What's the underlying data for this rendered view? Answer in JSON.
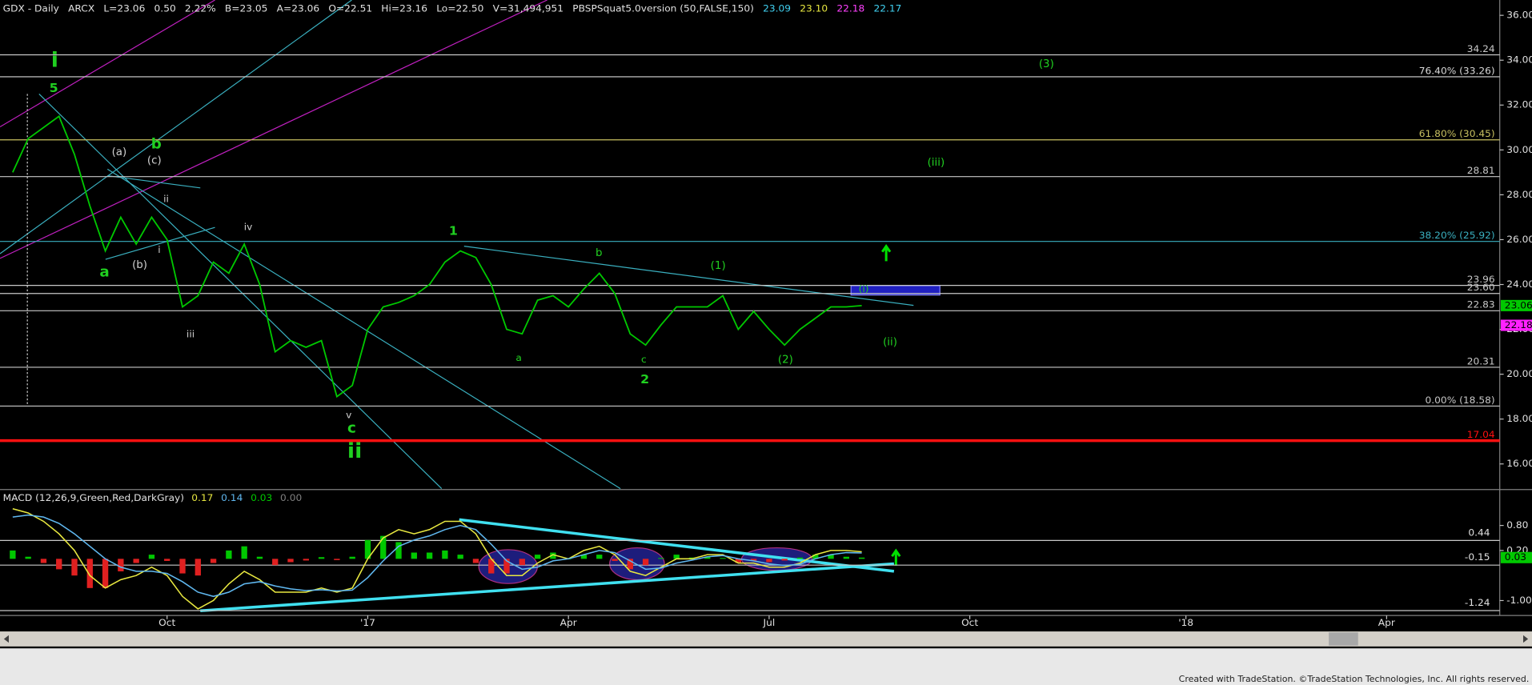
{
  "header": {
    "symbol": "GDX - Daily",
    "exchange": "ARCX",
    "fields": [
      "L=23.06",
      "0.50",
      "2.22%",
      "B=23.05",
      "A=23.06",
      "O=22.51",
      "Hi=23.16",
      "Lo=22.50",
      "V=31,494,951"
    ],
    "study": "PBSPSquat5.0version (50,FALSE,150)",
    "study_values": [
      "23.09",
      "23.10",
      "22.18",
      "22.17"
    ]
  },
  "footer": "Created with TradeStation. ©TradeStation Technologies, Inc. All rights reserved.",
  "chart_data": [
    {
      "type": "line",
      "color": "#00c800",
      "categories": [
        null,
        null,
        null,
        null,
        null,
        null,
        null,
        null,
        null,
        null,
        "Oct",
        null,
        null,
        null,
        null,
        null,
        null,
        null,
        null,
        null,
        null,
        null,
        null,
        "'17",
        null,
        null,
        null,
        null,
        null,
        null,
        null,
        null,
        null,
        null,
        null,
        null,
        "Apr",
        null,
        null,
        null,
        null,
        null,
        null,
        null,
        null,
        null,
        null,
        null,
        null,
        "Jul",
        null,
        null,
        null,
        null,
        null,
        null,
        null,
        null,
        null,
        null,
        null,
        null,
        "Oct",
        null,
        null,
        null,
        null,
        null,
        null,
        null,
        null,
        null,
        null,
        null,
        null,
        null,
        "'18",
        null,
        null,
        null,
        null,
        null,
        null,
        null,
        null,
        null,
        null,
        null,
        null,
        "Apr",
        null,
        null,
        null,
        null,
        null,
        null,
        null
      ],
      "values": [
        29,
        30.5,
        31,
        31.5,
        29.8,
        27.5,
        25.5,
        27,
        25.8,
        27,
        26,
        23,
        23.5,
        25,
        24.5,
        25.8,
        24,
        21,
        21.5,
        21.2,
        21.5,
        19,
        19.5,
        22,
        23,
        23.2,
        23.5,
        24,
        25,
        25.5,
        25.2,
        24,
        22,
        21.8,
        23.3,
        23.5,
        23,
        23.8,
        24.5,
        23.6,
        21.8,
        21.3,
        22.2,
        23,
        23,
        23,
        23.5,
        22,
        22.8,
        22,
        21.3,
        22,
        22.5,
        23,
        23,
        23.06,
        null,
        null,
        null,
        null,
        null,
        null,
        null,
        null,
        null,
        null,
        null,
        null,
        null,
        null,
        null,
        null,
        null,
        null,
        null,
        null,
        null,
        null,
        null,
        null,
        null,
        null,
        null,
        null,
        null,
        null,
        null,
        null,
        null,
        null,
        null,
        null,
        null,
        null,
        null,
        null,
        null
      ],
      "ylim": [
        14.9,
        36.6
      ],
      "yticks": [
        {
          "value": 36,
          "label": "36.00"
        },
        {
          "value": 34,
          "label": "34.00"
        },
        {
          "value": 32,
          "label": "32.00"
        },
        {
          "value": 30,
          "label": "30.00"
        },
        {
          "value": 28,
          "label": "28.00"
        },
        {
          "value": 26,
          "label": "26.00"
        },
        {
          "value": 24,
          "label": "24.00"
        },
        {
          "value": 22,
          "label": "22.00"
        },
        {
          "value": 20,
          "label": "20.00"
        },
        {
          "value": 18,
          "label": "18.00"
        },
        {
          "value": 16,
          "label": "16.00"
        }
      ],
      "levels": [
        {
          "value": 34.24,
          "color": "#c8c8c8"
        },
        {
          "value": 33.26,
          "label": "76.40% (33.26)",
          "color": "#d8d8d8"
        },
        {
          "value": 30.45,
          "label": "61.80% (30.45)",
          "color": "#c8c060"
        },
        {
          "value": 28.81,
          "color": "#c8c8c8"
        },
        {
          "value": 25.92,
          "label": "38.20% (25.92)",
          "color": "#3ab0c0"
        },
        {
          "value": 23.96,
          "color": "#c8c8c8"
        },
        {
          "value": 23.6,
          "label": "23.60",
          "color": "#c8c8c8"
        },
        {
          "value": 22.83,
          "color": "#c8c8c8"
        },
        {
          "value": 20.31,
          "color": "#c8c8c8"
        },
        {
          "value": 18.58,
          "label": "0.00% (18.58)",
          "color": "#c8c8c8"
        },
        {
          "value": 17.04,
          "color": "#ff1010",
          "thick": true
        }
      ],
      "markers": [
        {
          "value": 23.06,
          "color": "#00c800"
        },
        {
          "value": 22.18,
          "color": "#ff20ff"
        }
      ],
      "annotations": [
        "i",
        "5",
        "(a)",
        "b",
        "(c)",
        "ii",
        "a",
        "(b)",
        "i",
        "iii",
        "iv",
        "v",
        "c",
        "ii",
        "1",
        "b",
        "a",
        "c",
        "2",
        "(1)",
        "(2)",
        "(i)",
        "(ii)",
        "(iii)",
        "(3)"
      ]
    },
    {
      "type": "macd",
      "title": "MACD (12,26,9,Green,Red,DarkGray)",
      "legend_values": [
        {
          "value": 0.17,
          "color": "#e8e840"
        },
        {
          "value": 0.14,
          "color": "#60b8f0"
        },
        {
          "value": 0.03,
          "color": "#00c800"
        },
        {
          "value": 0,
          "label": "0.00",
          "color": "#808080"
        }
      ],
      "series": [
        {
          "color": "#e8e840",
          "values": [
            1.2,
            1.1,
            0.9,
            0.6,
            0.2,
            -0.4,
            -0.7,
            -0.5,
            -0.4,
            -0.2,
            -0.4,
            -0.9,
            -1.2,
            -1.0,
            -0.6,
            -0.3,
            -0.5,
            -0.8,
            -0.8,
            -0.8,
            -0.7,
            -0.8,
            -0.7,
            0,
            0.5,
            0.7,
            0.6,
            0.7,
            0.9,
            0.9,
            0.6,
            0,
            -0.4,
            -0.4,
            -0.1,
            0.1,
            0,
            0.2,
            0.3,
            0.1,
            -0.3,
            -0.4,
            -0.2,
            0,
            0,
            0.1,
            0.1,
            -0.1,
            -0.1,
            -0.2,
            -0.2,
            -0.1,
            0.1,
            0.2,
            0.2,
            0.17,
            null,
            null,
            null,
            null,
            null,
            null,
            null,
            null,
            null,
            null,
            null,
            null,
            null,
            null,
            null,
            null,
            null,
            null,
            null,
            null,
            null,
            null,
            null,
            null,
            null,
            null,
            null,
            null,
            null,
            null,
            null,
            null,
            null,
            null,
            null,
            null,
            null,
            null,
            null,
            null,
            null
          ]
        },
        {
          "color": "#60b8f0",
          "values": [
            1.0,
            1.05,
            1.0,
            0.85,
            0.6,
            0.3,
            0,
            -0.2,
            -0.3,
            -0.3,
            -0.35,
            -0.55,
            -0.8,
            -0.9,
            -0.8,
            -0.6,
            -0.55,
            -0.65,
            -0.72,
            -0.76,
            -0.74,
            -0.77,
            -0.75,
            -0.45,
            -0.05,
            0.3,
            0.45,
            0.55,
            0.7,
            0.8,
            0.7,
            0.35,
            -0.05,
            -0.25,
            -0.2,
            -0.05,
            0,
            0.1,
            0.2,
            0.15,
            -0.05,
            -0.25,
            -0.22,
            -0.1,
            -0.03,
            0.05,
            0.08,
            0,
            -0.05,
            -0.12,
            -0.16,
            -0.13,
            0,
            0.1,
            0.15,
            0.14,
            null,
            null,
            null,
            null,
            null,
            null,
            null,
            null,
            null,
            null,
            null,
            null,
            null,
            null,
            null,
            null,
            null,
            null,
            null,
            null,
            null,
            null,
            null,
            null,
            null,
            null,
            null,
            null,
            null,
            null,
            null,
            null,
            null,
            null,
            null,
            null,
            null,
            null,
            null,
            null,
            null
          ]
        }
      ],
      "histogram": {
        "up_color": "#00c800",
        "down_color": "#e02020",
        "values": [
          0.2,
          0.05,
          -0.1,
          -0.25,
          -0.4,
          -0.7,
          -0.7,
          -0.3,
          -0.1,
          0.1,
          -0.05,
          -0.35,
          -0.4,
          -0.1,
          0.2,
          0.3,
          0.05,
          -0.15,
          -0.08,
          -0.04,
          0.04,
          -0.03,
          0.05,
          0.45,
          0.55,
          0.4,
          0.15,
          0.15,
          0.2,
          0.1,
          -0.1,
          -0.35,
          -0.35,
          -0.15,
          0.1,
          0.15,
          0,
          0.1,
          0.1,
          -0.05,
          -0.25,
          -0.15,
          0.02,
          0.1,
          0.03,
          0.05,
          0.02,
          -0.1,
          -0.05,
          -0.08,
          -0.04,
          0.03,
          0.1,
          0.1,
          0.05,
          0.03,
          null,
          null,
          null,
          null,
          null,
          null,
          null,
          null,
          null,
          null,
          null,
          null,
          null,
          null,
          null,
          null,
          null,
          null,
          null,
          null,
          null,
          null,
          null,
          null,
          null,
          null,
          null,
          null,
          null,
          null,
          null,
          null,
          null,
          null,
          null,
          null,
          null,
          null,
          null,
          null,
          null
        ]
      },
      "ylim": [
        -1.29,
        1.3
      ],
      "yticks": [
        {
          "value": 0.8,
          "label": "0.80"
        },
        {
          "value": 0.2,
          "label": "0.20"
        },
        {
          "value": -1,
          "label": "-1.00"
        }
      ],
      "levels": [
        0.44,
        -0.15,
        -1.24
      ],
      "markers": [
        {
          "value": 0.03,
          "color": "#00c800"
        }
      ]
    }
  ]
}
